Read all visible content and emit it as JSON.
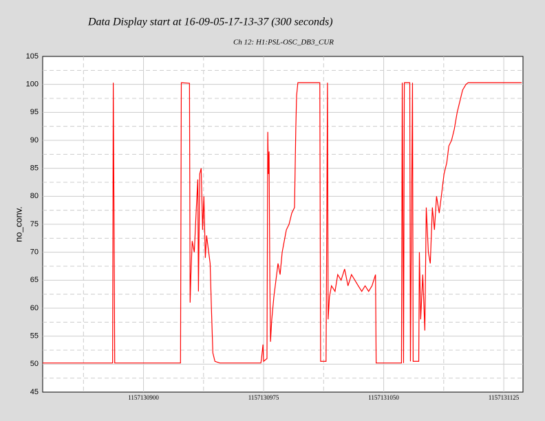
{
  "chart_data": {
    "type": "line",
    "title": "Data Display start at 16-09-05-17-13-37 (300 seconds)",
    "subtitle": "Ch 12: H1:PSL-OSC_DB3_CUR",
    "y_label": "no_conv.",
    "x": [
      1157130837,
      1157130880.7,
      1157130881.1,
      1157130881.6,
      1157130882,
      1157130923.1,
      1157130923.6,
      1157130928.7,
      1157130929.1,
      1157130929.6,
      1157130930.4,
      1157130931.7,
      1157130933,
      1157130933.9,
      1157130934.3,
      1157130935.1,
      1157130936,
      1157130936.9,
      1157130937.7,
      1157130938.6,
      1157130939.4,
      1157130940.7,
      1157130941.6,
      1157130942.4,
      1157130943.3,
      1157130944.6,
      1157130947.6,
      1157130973.3,
      1157130973.7,
      1157130974.6,
      1157130975,
      1157130977.1,
      1157130977.6,
      1157130978,
      1157130978.4,
      1157130978.9,
      1157130979.3,
      1157130980.1,
      1157130981.4,
      1157130982.7,
      1157130984,
      1157130985.3,
      1157130986.6,
      1157130987.9,
      1157130989.2,
      1157130990.9,
      1157130992.6,
      1157130994.3,
      1157130995.1,
      1157130995.6,
      1157130996.4,
      1157131010.1,
      1157131010.6,
      1157131014,
      1157131014.9,
      1157131015.3,
      1157131016.1,
      1157131017.4,
      1157131019.6,
      1157131021.3,
      1157131023.4,
      1157131025.6,
      1157131027.7,
      1157131029.9,
      1157131032,
      1157131034.1,
      1157131036.3,
      1157131038.4,
      1157131040.6,
      1157131042.7,
      1157131044.9,
      1157131045.3,
      1157131061.1,
      1157131061.6,
      1157131062.4,
      1157131062.9,
      1157131066.3,
      1157131066.7,
      1157131068,
      1157131068.4,
      1157131071.9,
      1157131072.3,
      1157131073.1,
      1157131074.4,
      1157131075.7,
      1157131076.6,
      1157131077.9,
      1157131079.1,
      1157131080.4,
      1157131081.7,
      1157131083,
      1157131084.7,
      1157131086,
      1157131087.7,
      1157131089.4,
      1157131090.7,
      1157131092.4,
      1157131094.1,
      1157131095.9,
      1157131097.6,
      1157131099.3,
      1157131101.4,
      1157131102.7,
      1157131136.2
    ],
    "series": [
      {
        "color": "#ff0000",
        "values": [
          50.2,
          50.2,
          100.3,
          75,
          50.2,
          50.2,
          100.3,
          100.2,
          61,
          66,
          72,
          70,
          78,
          83,
          63,
          84,
          85,
          74,
          80,
          69,
          73,
          70,
          68,
          60,
          52,
          50.5,
          50.2,
          50.2,
          51,
          53.5,
          50.5,
          51,
          91.5,
          84,
          88,
          65,
          54,
          58,
          62,
          65,
          68,
          66,
          70,
          72,
          74,
          75,
          77,
          78,
          92,
          98,
          100.3,
          100.3,
          50.5,
          50.5,
          100.3,
          58,
          62,
          64,
          63,
          66,
          65,
          67,
          64,
          66,
          65,
          64,
          63,
          64,
          63,
          64,
          66,
          50.2,
          50.2,
          100.3,
          50.2,
          100.3,
          100.3,
          50.5,
          100.3,
          50.5,
          50.5,
          70,
          58,
          66,
          56,
          78,
          70,
          68,
          78,
          74,
          80,
          77,
          80,
          84,
          86,
          89,
          90,
          92,
          95,
          97,
          99,
          100,
          100.3,
          100.3
        ]
      }
    ],
    "xlim": [
      1157130837,
      1157131137
    ],
    "xticks": [
      1157130900,
      1157130975,
      1157131050,
      1157131125
    ],
    "ylim": [
      45,
      105
    ],
    "yticks": [
      45,
      50,
      55,
      60,
      65,
      70,
      75,
      80,
      85,
      90,
      95,
      100,
      105
    ],
    "grid": true
  }
}
